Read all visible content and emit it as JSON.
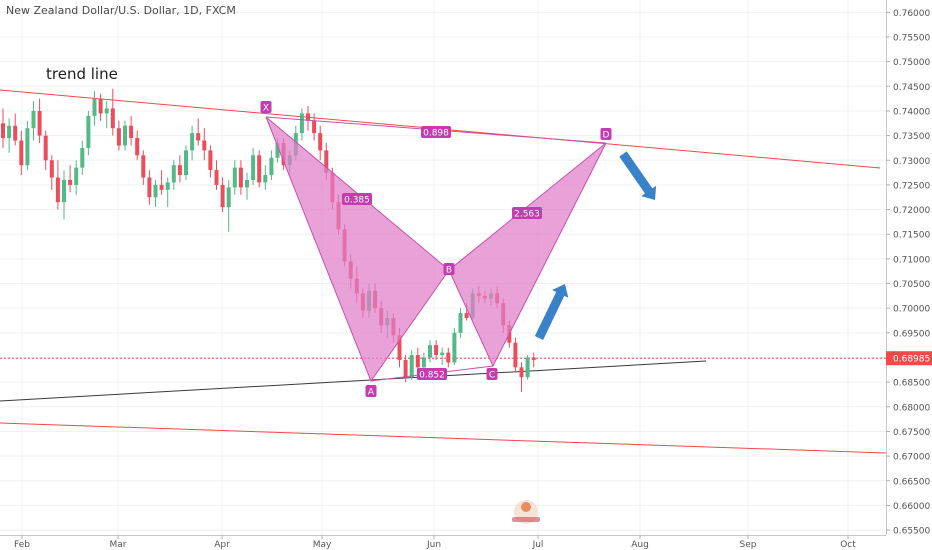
{
  "chart_data": {
    "type": "candlestick",
    "title": "New Zealand Dollar/U.S. Dollar, 1D, FXCM",
    "annotation": "trend line",
    "ylim": [
      0.654,
      0.7625
    ],
    "y_ticks": [
      "0.76000",
      "0.75500",
      "0.75000",
      "0.74500",
      "0.74000",
      "0.73500",
      "0.73000",
      "0.72500",
      "0.72000",
      "0.71500",
      "0.71000",
      "0.70500",
      "0.70000",
      "0.69500",
      "0.69000",
      "0.68500",
      "0.68000",
      "0.67500",
      "0.67000",
      "0.66500",
      "0.66000",
      "0.65500"
    ],
    "x_ticks": [
      "Feb",
      "Mar",
      "Apr",
      "May",
      "Jun",
      "Jul",
      "Aug",
      "Sep",
      "Oct"
    ],
    "current_price": "0.68985",
    "pattern_points": {
      "X": "X",
      "A": "A",
      "B": "B",
      "C": "C",
      "D": "D"
    },
    "ratios": {
      "XD": "0.898",
      "XB": "0.385",
      "BD": "2.563",
      "AC": "0.852"
    },
    "candles": [
      [
        0.7375,
        0.7405,
        0.7325,
        0.7345
      ],
      [
        0.7345,
        0.7385,
        0.7315,
        0.737
      ],
      [
        0.737,
        0.7395,
        0.733,
        0.734
      ],
      [
        0.734,
        0.736,
        0.727,
        0.729
      ],
      [
        0.729,
        0.738,
        0.728,
        0.7365
      ],
      [
        0.7365,
        0.742,
        0.734,
        0.74
      ],
      [
        0.74,
        0.7425,
        0.7335,
        0.735
      ],
      [
        0.735,
        0.736,
        0.728,
        0.73
      ],
      [
        0.73,
        0.731,
        0.724,
        0.7265
      ],
      [
        0.7265,
        0.73,
        0.72,
        0.7215
      ],
      [
        0.7215,
        0.728,
        0.718,
        0.726
      ],
      [
        0.726,
        0.729,
        0.7235,
        0.725
      ],
      [
        0.725,
        0.73,
        0.723,
        0.7285
      ],
      [
        0.7285,
        0.734,
        0.727,
        0.7325
      ],
      [
        0.7325,
        0.74,
        0.731,
        0.739
      ],
      [
        0.739,
        0.744,
        0.737,
        0.7425
      ],
      [
        0.7425,
        0.7435,
        0.738,
        0.7395
      ],
      [
        0.7395,
        0.742,
        0.7365,
        0.7405
      ],
      [
        0.7405,
        0.7445,
        0.735,
        0.7365
      ],
      [
        0.7365,
        0.738,
        0.732,
        0.733
      ],
      [
        0.733,
        0.738,
        0.732,
        0.737
      ],
      [
        0.737,
        0.739,
        0.733,
        0.7345
      ],
      [
        0.7345,
        0.736,
        0.73,
        0.731
      ],
      [
        0.731,
        0.732,
        0.725,
        0.7265
      ],
      [
        0.7265,
        0.728,
        0.721,
        0.7225
      ],
      [
        0.7225,
        0.726,
        0.7205,
        0.725
      ],
      [
        0.725,
        0.728,
        0.723,
        0.724
      ],
      [
        0.724,
        0.7265,
        0.7205,
        0.7255
      ],
      [
        0.7255,
        0.73,
        0.724,
        0.729
      ],
      [
        0.729,
        0.731,
        0.7255,
        0.727
      ],
      [
        0.727,
        0.733,
        0.726,
        0.732
      ],
      [
        0.732,
        0.737,
        0.73,
        0.7355
      ],
      [
        0.7355,
        0.7385,
        0.733,
        0.734
      ],
      [
        0.734,
        0.7365,
        0.73,
        0.732
      ],
      [
        0.732,
        0.733,
        0.7265,
        0.728
      ],
      [
        0.728,
        0.73,
        0.724,
        0.725
      ],
      [
        0.725,
        0.7265,
        0.7195,
        0.7205
      ],
      [
        0.7205,
        0.726,
        0.7155,
        0.7245
      ],
      [
        0.7245,
        0.73,
        0.723,
        0.7285
      ],
      [
        0.7285,
        0.73,
        0.723,
        0.7245
      ],
      [
        0.7245,
        0.7275,
        0.722,
        0.726
      ],
      [
        0.726,
        0.7325,
        0.725,
        0.731
      ],
      [
        0.731,
        0.732,
        0.7245,
        0.7255
      ],
      [
        0.7255,
        0.729,
        0.724,
        0.727
      ],
      [
        0.727,
        0.732,
        0.726,
        0.7305
      ],
      [
        0.7305,
        0.7345,
        0.7295,
        0.7335
      ],
      [
        0.7335,
        0.7345,
        0.728,
        0.729
      ],
      [
        0.729,
        0.732,
        0.727,
        0.731
      ],
      [
        0.731,
        0.737,
        0.73,
        0.7355
      ],
      [
        0.7355,
        0.7405,
        0.734,
        0.7395
      ],
      [
        0.7395,
        0.741,
        0.736,
        0.738
      ],
      [
        0.738,
        0.7395,
        0.734,
        0.7355
      ],
      [
        0.7355,
        0.737,
        0.73,
        0.732
      ],
      [
        0.732,
        0.7335,
        0.726,
        0.7275
      ],
      [
        0.7275,
        0.7285,
        0.72,
        0.7215
      ],
      [
        0.7215,
        0.723,
        0.715,
        0.716
      ],
      [
        0.716,
        0.717,
        0.7085,
        0.7095
      ],
      [
        0.7095,
        0.711,
        0.704,
        0.706
      ],
      [
        0.706,
        0.7085,
        0.701,
        0.703
      ],
      [
        0.703,
        0.704,
        0.698,
        0.6995
      ],
      [
        0.6995,
        0.705,
        0.698,
        0.7035
      ],
      [
        0.7035,
        0.705,
        0.699,
        0.7
      ],
      [
        0.7,
        0.7015,
        0.695,
        0.6965
      ],
      [
        0.6965,
        0.6995,
        0.694,
        0.698
      ],
      [
        0.698,
        0.699,
        0.693,
        0.6945
      ],
      [
        0.6945,
        0.696,
        0.688,
        0.6895
      ],
      [
        0.6895,
        0.6905,
        0.685,
        0.686
      ],
      [
        0.686,
        0.6915,
        0.6855,
        0.6905
      ],
      [
        0.6905,
        0.692,
        0.687,
        0.688
      ],
      [
        0.688,
        0.691,
        0.687,
        0.69
      ],
      [
        0.69,
        0.6935,
        0.689,
        0.6925
      ],
      [
        0.6925,
        0.6935,
        0.6895,
        0.6905
      ],
      [
        0.6905,
        0.692,
        0.6885,
        0.691
      ],
      [
        0.691,
        0.692,
        0.688,
        0.689
      ],
      [
        0.689,
        0.696,
        0.6885,
        0.695
      ],
      [
        0.695,
        0.7,
        0.694,
        0.699
      ],
      [
        0.699,
        0.701,
        0.6975,
        0.698
      ],
      [
        0.698,
        0.704,
        0.6975,
        0.703
      ],
      [
        0.703,
        0.7045,
        0.701,
        0.7025
      ],
      [
        0.7025,
        0.7035,
        0.701,
        0.702
      ],
      [
        0.702,
        0.704,
        0.7005,
        0.703
      ],
      [
        0.703,
        0.7045,
        0.7,
        0.701
      ],
      [
        0.701,
        0.702,
        0.695,
        0.6965
      ],
      [
        0.6965,
        0.6975,
        0.692,
        0.693
      ],
      [
        0.693,
        0.694,
        0.687,
        0.688
      ],
      [
        0.688,
        0.689,
        0.683,
        0.686
      ],
      [
        0.686,
        0.6905,
        0.6855,
        0.69
      ],
      [
        0.69,
        0.691,
        0.688,
        0.6895
      ]
    ]
  },
  "colors": {
    "up": "#53b987",
    "down": "#eb4d5c",
    "pattern_fill": "#e07ec8",
    "pattern_stroke": "#c94fae",
    "trend_red": "#f04a4a",
    "trend_black": "#3a3a3a",
    "arrow": "#3a82c8",
    "label_bg": "#c63cb0"
  }
}
